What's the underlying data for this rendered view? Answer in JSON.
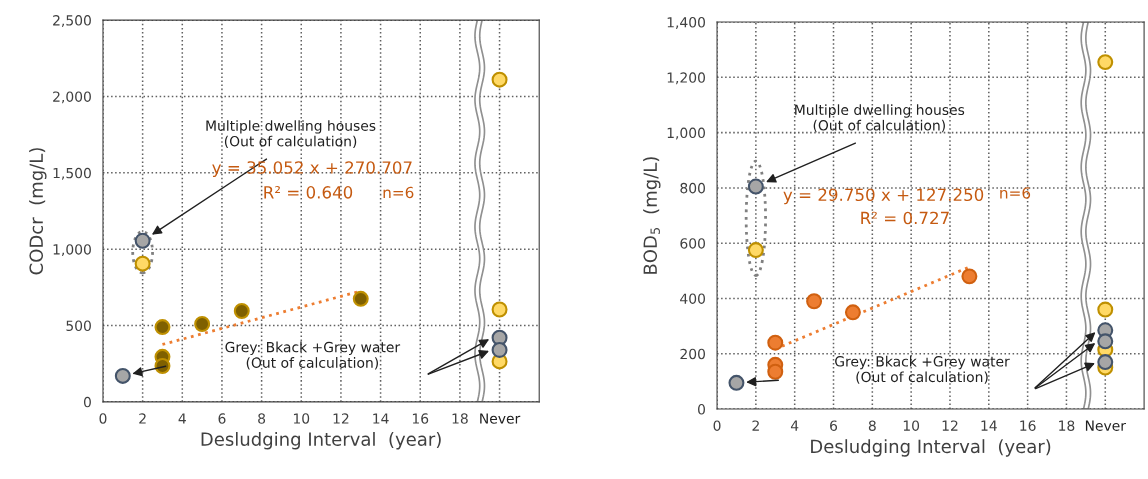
{
  "chart_data": [
    {
      "type": "scatter",
      "xlabel": "Desludging Interval  (year)",
      "ylabel": "CODcr  (mg/L)",
      "xlim": [
        0,
        22
      ],
      "xticks": [
        0,
        2,
        4,
        6,
        8,
        10,
        12,
        14,
        16,
        18,
        {
          "value": 20,
          "label": "Never"
        }
      ],
      "ylim": [
        0,
        2500
      ],
      "yticks": [
        0,
        500,
        {
          "value": 1000,
          "label": "1,000"
        },
        {
          "value": 1500,
          "label": "1,500"
        },
        {
          "value": 2000,
          "label": "2,000"
        },
        {
          "value": 2500,
          "label": "2,500"
        }
      ],
      "grid": true,
      "marker": "circle",
      "series": [
        {
          "color": "#a6a6a6",
          "x": [
            1,
            2,
            20,
            20
          ],
          "values": [
            170,
            1055,
            420,
            340
          ]
        },
        {
          "color": "#ffd966",
          "x": [
            2,
            20,
            20,
            20
          ],
          "values": [
            905,
            2110,
            605,
            265
          ]
        },
        {
          "color": "#7f6000",
          "x": [
            3,
            3,
            3,
            5,
            7,
            13
          ],
          "values": [
            490,
            295,
            235,
            510,
            595,
            675
          ]
        },
        {
          "type": "line",
          "color": "#ed7d31",
          "line_style": "dotted",
          "marker": "none",
          "x": [
            3,
            13
          ],
          "values": [
            376,
            726
          ]
        }
      ],
      "annotations": [
        "Multiple dwelling houses\n(Out of calculation)",
        "Grey: Bkack +Grey water\n(Out of calculation)",
        "y = 35.052 x + 270.707",
        "R² = 0.640",
        "n=6"
      ]
    },
    {
      "type": "scatter",
      "xlabel": "Desludging Interval  (year)",
      "ylabel": "BOD$_{5}$  (mg/L)",
      "xlim": [
        0,
        22
      ],
      "xticks": [
        0,
        2,
        4,
        6,
        8,
        10,
        12,
        14,
        16,
        18,
        {
          "value": 20,
          "label": "Never"
        }
      ],
      "ylim": [
        0,
        1400
      ],
      "yticks": [
        0,
        200,
        400,
        600,
        800,
        {
          "value": 1000,
          "label": "1,000"
        },
        {
          "value": 1200,
          "label": "1,200"
        },
        {
          "value": 1400,
          "label": "1,400"
        }
      ],
      "grid": true,
      "marker": "circle",
      "series": [
        {
          "color": "#a6a6a6",
          "x": [
            1,
            2,
            20,
            20,
            20
          ],
          "values": [
            95,
            805,
            285,
            245,
            170
          ]
        },
        {
          "color": "#ffd966",
          "x": [
            2,
            20,
            20,
            20,
            20
          ],
          "values": [
            575,
            1255,
            360,
            215,
            150
          ]
        },
        {
          "color": "#ed7d31",
          "x": [
            3,
            3,
            3,
            5,
            7,
            13
          ],
          "values": [
            240,
            160,
            135,
            390,
            350,
            480
          ]
        },
        {
          "type": "line",
          "color": "#ed7d31",
          "line_style": "dotted",
          "marker": "none",
          "x": [
            3,
            13
          ],
          "values": [
            217,
            514
          ]
        }
      ],
      "annotations": [
        "Multiple dwelling houses\n(Out of calculation)",
        "Grey: Bkack +Grey water\n(Out of calculation)",
        "y = 29.750 x + 127.250",
        "R² = 0.727",
        "n=6"
      ]
    }
  ]
}
